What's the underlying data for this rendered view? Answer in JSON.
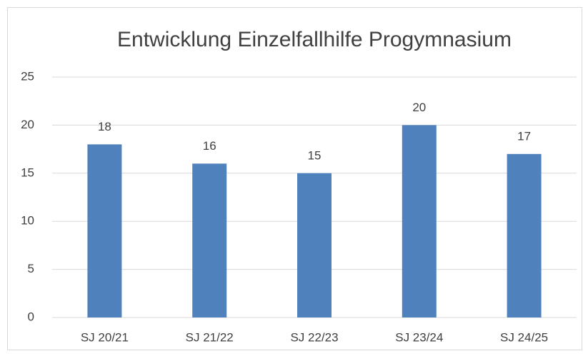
{
  "chart_data": {
    "type": "bar",
    "title": "Entwicklung Einzelfallhilfe Progymnasium",
    "categories": [
      "SJ 20/21",
      "SJ 21/22",
      "SJ 22/23",
      "SJ 23/24",
      "SJ 24/25"
    ],
    "values": [
      18,
      16,
      15,
      20,
      17
    ],
    "color": "#4f81bd",
    "ylim": [
      0,
      25
    ],
    "yticks": [
      0,
      5,
      10,
      15,
      20,
      25
    ],
    "grid": true,
    "data_labels": true
  }
}
